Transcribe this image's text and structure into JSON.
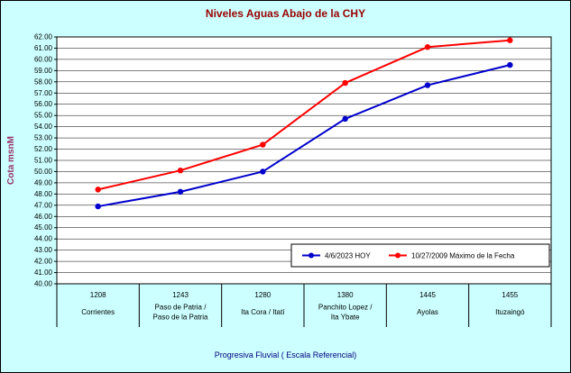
{
  "chart_data": {
    "type": "line",
    "title": "Niveles Aguas Abajo de la CHY",
    "ylabel": "Cota msnM",
    "xlabel": "Progresiva Fluvial ( Escala Referencial)",
    "ylim": [
      40,
      62
    ],
    "ytick_step": 1,
    "ytick_decimals": 2,
    "grid": true,
    "legend_position": "inside-bottom-right",
    "categories": [
      {
        "km": "1208",
        "name_lines": [
          "Corrientes"
        ]
      },
      {
        "km": "1243",
        "name_lines": [
          "Paso de Patria /",
          "Paso de la Patria"
        ]
      },
      {
        "km": "1280",
        "name_lines": [
          "Ita Cora / Itatí"
        ]
      },
      {
        "km": "1380",
        "name_lines": [
          "Panchito Lopez /",
          "Ita Ybate"
        ]
      },
      {
        "km": "1445",
        "name_lines": [
          "Ayolas"
        ]
      },
      {
        "km": "1455",
        "name_lines": [
          "Ituzaingó"
        ]
      }
    ],
    "series": [
      {
        "name": "4/6/2023 HOY",
        "color": "#0000CC",
        "marker": "circle",
        "values": [
          46.9,
          48.2,
          50.0,
          54.7,
          57.7,
          59.5
        ]
      },
      {
        "name": "10/27/2009 Máximo de la Fecha",
        "color": "#FF0000",
        "marker": "circle",
        "values": [
          48.4,
          50.1,
          52.4,
          57.9,
          61.1,
          61.7
        ]
      }
    ],
    "colors": {
      "title": "#990000",
      "ylabel": "#993366",
      "xlabel": "#000080",
      "plot_bg": "#FFFFFF",
      "chart_bg": "#CCFFFF",
      "gridline": "#000000",
      "axis": "#000000",
      "tick_text": "#000000",
      "legend_bg": "#FFFFFF",
      "legend_border": "#000000"
    }
  }
}
